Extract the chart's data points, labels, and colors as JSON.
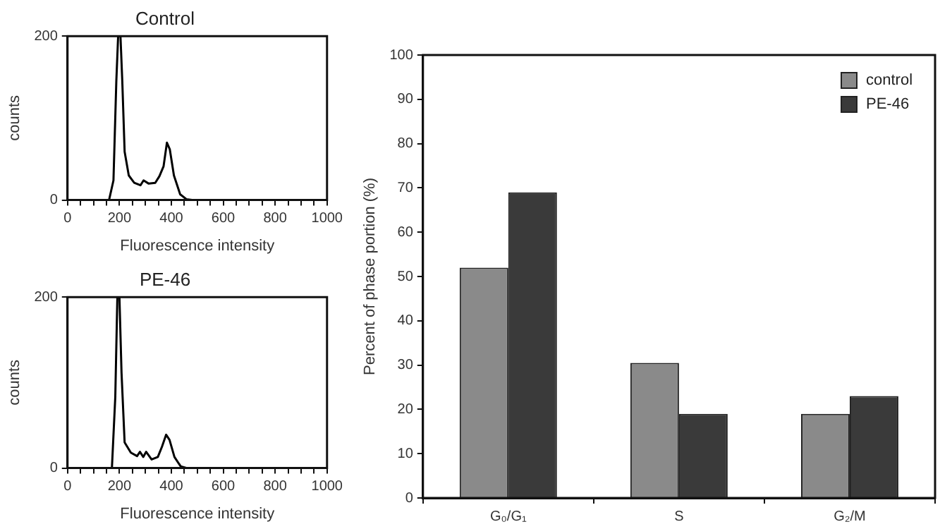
{
  "chart_data": [
    {
      "type": "line",
      "title": "Control",
      "xlabel": "Fluorescence intensity",
      "ylabel": "counts",
      "marker": "none",
      "grid": false,
      "x": [
        0,
        160,
        177,
        188,
        195,
        204,
        211,
        220,
        236,
        257,
        281,
        293,
        313,
        338,
        354,
        370,
        383,
        394,
        410,
        434,
        458,
        480,
        1000
      ],
      "series": [
        {
          "color": "#000000",
          "values": [
            0,
            0,
            24,
            145,
            200,
            200,
            145,
            59,
            30,
            21,
            18,
            24,
            20,
            21,
            29,
            41,
            70,
            62,
            30,
            7,
            1,
            0,
            0
          ]
        }
      ],
      "xlim": [
        0,
        1000
      ],
      "ylim": [
        0,
        200
      ],
      "xticks": [
        0,
        {
          "value": 50,
          "label": null
        },
        {
          "value": 100,
          "label": null
        },
        {
          "value": 150,
          "label": null
        },
        200,
        {
          "value": 250,
          "label": null
        },
        {
          "value": 300,
          "label": null
        },
        {
          "value": 350,
          "label": null
        },
        400,
        {
          "value": 450,
          "label": null
        },
        {
          "value": 500,
          "label": null
        },
        {
          "value": 550,
          "label": null
        },
        600,
        {
          "value": 650,
          "label": null
        },
        {
          "value": 700,
          "label": null
        },
        {
          "value": 750,
          "label": null
        },
        800,
        {
          "value": 850,
          "label": null
        },
        {
          "value": 900,
          "label": null
        },
        {
          "value": 950,
          "label": null
        },
        1000
      ],
      "yticks": [
        0,
        200
      ]
    },
    {
      "type": "line",
      "title": "PE-46",
      "xlabel": "Fluorescence intensity",
      "ylabel": "counts",
      "marker": "none",
      "grid": false,
      "x": [
        0,
        171,
        184,
        192,
        200,
        208,
        220,
        244,
        268,
        279,
        292,
        303,
        324,
        348,
        364,
        380,
        393,
        412,
        436,
        460,
        1000
      ],
      "series": [
        {
          "color": "#000000",
          "values": [
            0,
            0,
            83,
            200,
            200,
            112,
            30,
            18,
            14,
            19,
            13,
            19,
            10,
            13,
            25,
            39,
            33,
            13,
            2,
            0,
            0
          ]
        }
      ],
      "xlim": [
        0,
        1000
      ],
      "ylim": [
        0,
        200
      ],
      "xticks": [
        0,
        {
          "value": 50,
          "label": null
        },
        {
          "value": 100,
          "label": null
        },
        {
          "value": 150,
          "label": null
        },
        200,
        {
          "value": 250,
          "label": null
        },
        {
          "value": 300,
          "label": null
        },
        {
          "value": 350,
          "label": null
        },
        400,
        {
          "value": 450,
          "label": null
        },
        {
          "value": 500,
          "label": null
        },
        {
          "value": 550,
          "label": null
        },
        600,
        {
          "value": 650,
          "label": null
        },
        {
          "value": 700,
          "label": null
        },
        {
          "value": 750,
          "label": null
        },
        800,
        {
          "value": 850,
          "label": null
        },
        {
          "value": 900,
          "label": null
        },
        {
          "value": 950,
          "label": null
        },
        1000
      ],
      "yticks": [
        0,
        200
      ]
    },
    {
      "type": "bar",
      "ylabel": "Percent of phase portion (%)",
      "grid": false,
      "legend": "top right",
      "categories": [
        "G₀/G₁",
        "S",
        "G₂/M"
      ],
      "series": [
        {
          "name": "control",
          "color": "#8a8a8a",
          "values": [
            52,
            30.5,
            19
          ]
        },
        {
          "name": "PE-46",
          "color": "#3a3a3a",
          "values": [
            69,
            19,
            23
          ]
        }
      ],
      "ylim": [
        0,
        100
      ],
      "yticks": [
        0,
        10,
        20,
        30,
        40,
        50,
        60,
        70,
        80,
        90,
        100
      ]
    }
  ]
}
